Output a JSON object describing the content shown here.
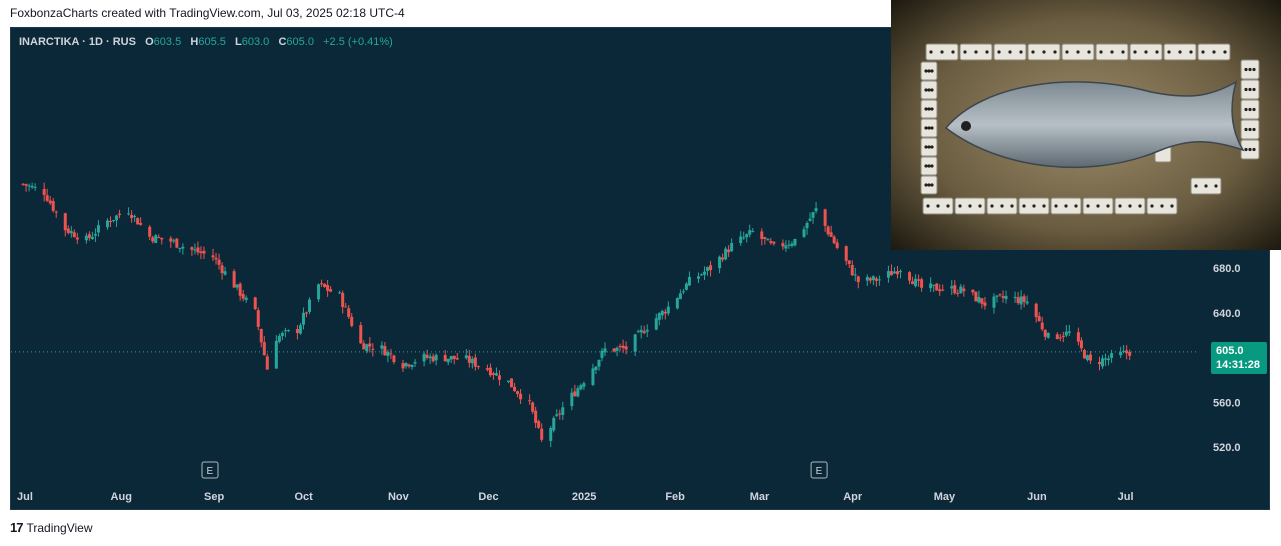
{
  "caption": "FoxbonzaCharts created with TradingView.com, Jul 03, 2025 02:18 UTC-4",
  "legend": {
    "symbol": "INARCTIKA · 1D · RUS",
    "o_label": "O",
    "o_value": "603.5",
    "h_label": "H",
    "h_value": "605.5",
    "l_label": "L",
    "l_value": "603.0",
    "c_label": "C",
    "c_value": "605.0",
    "change": "+2.5 (+0.41%)"
  },
  "last_price": {
    "price": "605.0",
    "countdown": "14:31:28"
  },
  "footer": {
    "logo_mark": "17",
    "brand": "TradingView"
  },
  "colors": {
    "up": "#26a69a",
    "down": "#ef5350",
    "background": "#0b2838",
    "tag": "#089981"
  },
  "chart_data": {
    "type": "candlestick",
    "x_ticks": [
      "Jul",
      "Aug",
      "Sep",
      "Oct",
      "Nov",
      "Dec",
      "2025",
      "Feb",
      "Mar",
      "Apr",
      "May",
      "Jun",
      "Jul"
    ],
    "y_ticks": [
      "520.0",
      "560.0",
      "640.0",
      "680.0"
    ],
    "ylim": [
      500,
      760
    ],
    "event_markers": [
      {
        "label": "E",
        "date": "2024-09-01"
      },
      {
        "label": "E",
        "date": "2025-03-22"
      }
    ],
    "last_close": 605.0,
    "daily_closes": [
      {
        "d": "2024-07-01",
        "c": 755
      },
      {
        "d": "2024-07-08",
        "c": 748
      },
      {
        "d": "2024-07-15",
        "c": 715
      },
      {
        "d": "2024-07-22",
        "c": 705
      },
      {
        "d": "2024-07-29",
        "c": 722
      },
      {
        "d": "2024-08-05",
        "c": 732
      },
      {
        "d": "2024-08-12",
        "c": 708
      },
      {
        "d": "2024-08-19",
        "c": 704
      },
      {
        "d": "2024-08-26",
        "c": 696
      },
      {
        "d": "2024-09-02",
        "c": 690
      },
      {
        "d": "2024-09-09",
        "c": 665
      },
      {
        "d": "2024-09-16",
        "c": 640
      },
      {
        "d": "2024-09-20",
        "c": 590
      },
      {
        "d": "2024-09-23",
        "c": 618
      },
      {
        "d": "2024-09-30",
        "c": 625
      },
      {
        "d": "2024-10-07",
        "c": 665
      },
      {
        "d": "2024-10-14",
        "c": 655
      },
      {
        "d": "2024-10-21",
        "c": 612
      },
      {
        "d": "2024-10-28",
        "c": 608
      },
      {
        "d": "2024-11-04",
        "c": 594
      },
      {
        "d": "2024-11-11",
        "c": 600
      },
      {
        "d": "2024-11-18",
        "c": 600
      },
      {
        "d": "2024-11-25",
        "c": 598
      },
      {
        "d": "2024-12-02",
        "c": 590
      },
      {
        "d": "2024-12-09",
        "c": 578
      },
      {
        "d": "2024-12-16",
        "c": 558
      },
      {
        "d": "2024-12-20",
        "c": 525
      },
      {
        "d": "2024-12-27",
        "c": 555
      },
      {
        "d": "2025-01-03",
        "c": 580
      },
      {
        "d": "2025-01-10",
        "c": 607
      },
      {
        "d": "2025-01-17",
        "c": 608
      },
      {
        "d": "2025-01-24",
        "c": 628
      },
      {
        "d": "2025-01-31",
        "c": 645
      },
      {
        "d": "2025-02-07",
        "c": 668
      },
      {
        "d": "2025-02-14",
        "c": 680
      },
      {
        "d": "2025-02-21",
        "c": 700
      },
      {
        "d": "2025-02-28",
        "c": 712
      },
      {
        "d": "2025-03-07",
        "c": 698
      },
      {
        "d": "2025-03-14",
        "c": 705
      },
      {
        "d": "2025-03-21",
        "c": 732
      },
      {
        "d": "2025-03-28",
        "c": 698
      },
      {
        "d": "2025-04-04",
        "c": 668
      },
      {
        "d": "2025-04-11",
        "c": 670
      },
      {
        "d": "2025-04-18",
        "c": 680
      },
      {
        "d": "2025-04-25",
        "c": 662
      },
      {
        "d": "2025-05-02",
        "c": 662
      },
      {
        "d": "2025-05-09",
        "c": 660
      },
      {
        "d": "2025-05-16",
        "c": 648
      },
      {
        "d": "2025-05-23",
        "c": 654
      },
      {
        "d": "2025-05-30",
        "c": 650
      },
      {
        "d": "2025-06-06",
        "c": 618
      },
      {
        "d": "2025-06-13",
        "c": 622
      },
      {
        "d": "2025-06-20",
        "c": 595
      },
      {
        "d": "2025-06-27",
        "c": 600
      },
      {
        "d": "2025-07-03",
        "c": 605
      }
    ]
  }
}
